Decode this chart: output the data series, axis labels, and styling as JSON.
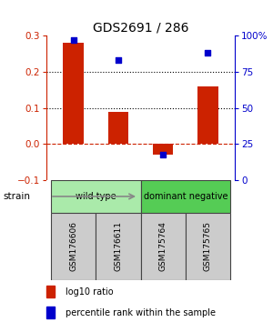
{
  "title": "GDS2691 / 286",
  "samples": [
    "GSM176606",
    "GSM176611",
    "GSM175764",
    "GSM175765"
  ],
  "log10_ratio": [
    0.28,
    0.09,
    -0.03,
    0.16
  ],
  "percentile_rank": [
    97,
    83,
    18,
    88
  ],
  "bar_color": "#cc2200",
  "dot_color": "#0000cc",
  "ylim_left": [
    -0.1,
    0.3
  ],
  "ylim_right": [
    0,
    100
  ],
  "yticks_left": [
    -0.1,
    0.0,
    0.1,
    0.2,
    0.3
  ],
  "yticks_right": [
    0,
    25,
    50,
    75,
    100
  ],
  "ytick_labels_right": [
    "0",
    "25",
    "50",
    "75",
    "100%"
  ],
  "hlines_dotted": [
    0.1,
    0.2
  ],
  "hline_dashed_color": "#cc2200",
  "hline_dashed_val": 0.0,
  "groups": [
    {
      "label": "wild type",
      "color": "#aaeaaa",
      "samples": [
        0,
        1
      ]
    },
    {
      "label": "dominant negative",
      "color": "#55cc55",
      "samples": [
        2,
        3
      ]
    }
  ],
  "strain_label": "strain",
  "legend": [
    {
      "color": "#cc2200",
      "label": "log10 ratio"
    },
    {
      "color": "#0000cc",
      "label": "percentile rank within the sample"
    }
  ],
  "bg_color": "#ffffff",
  "sample_box_color": "#cccccc",
  "sample_box_edge": "#444444"
}
